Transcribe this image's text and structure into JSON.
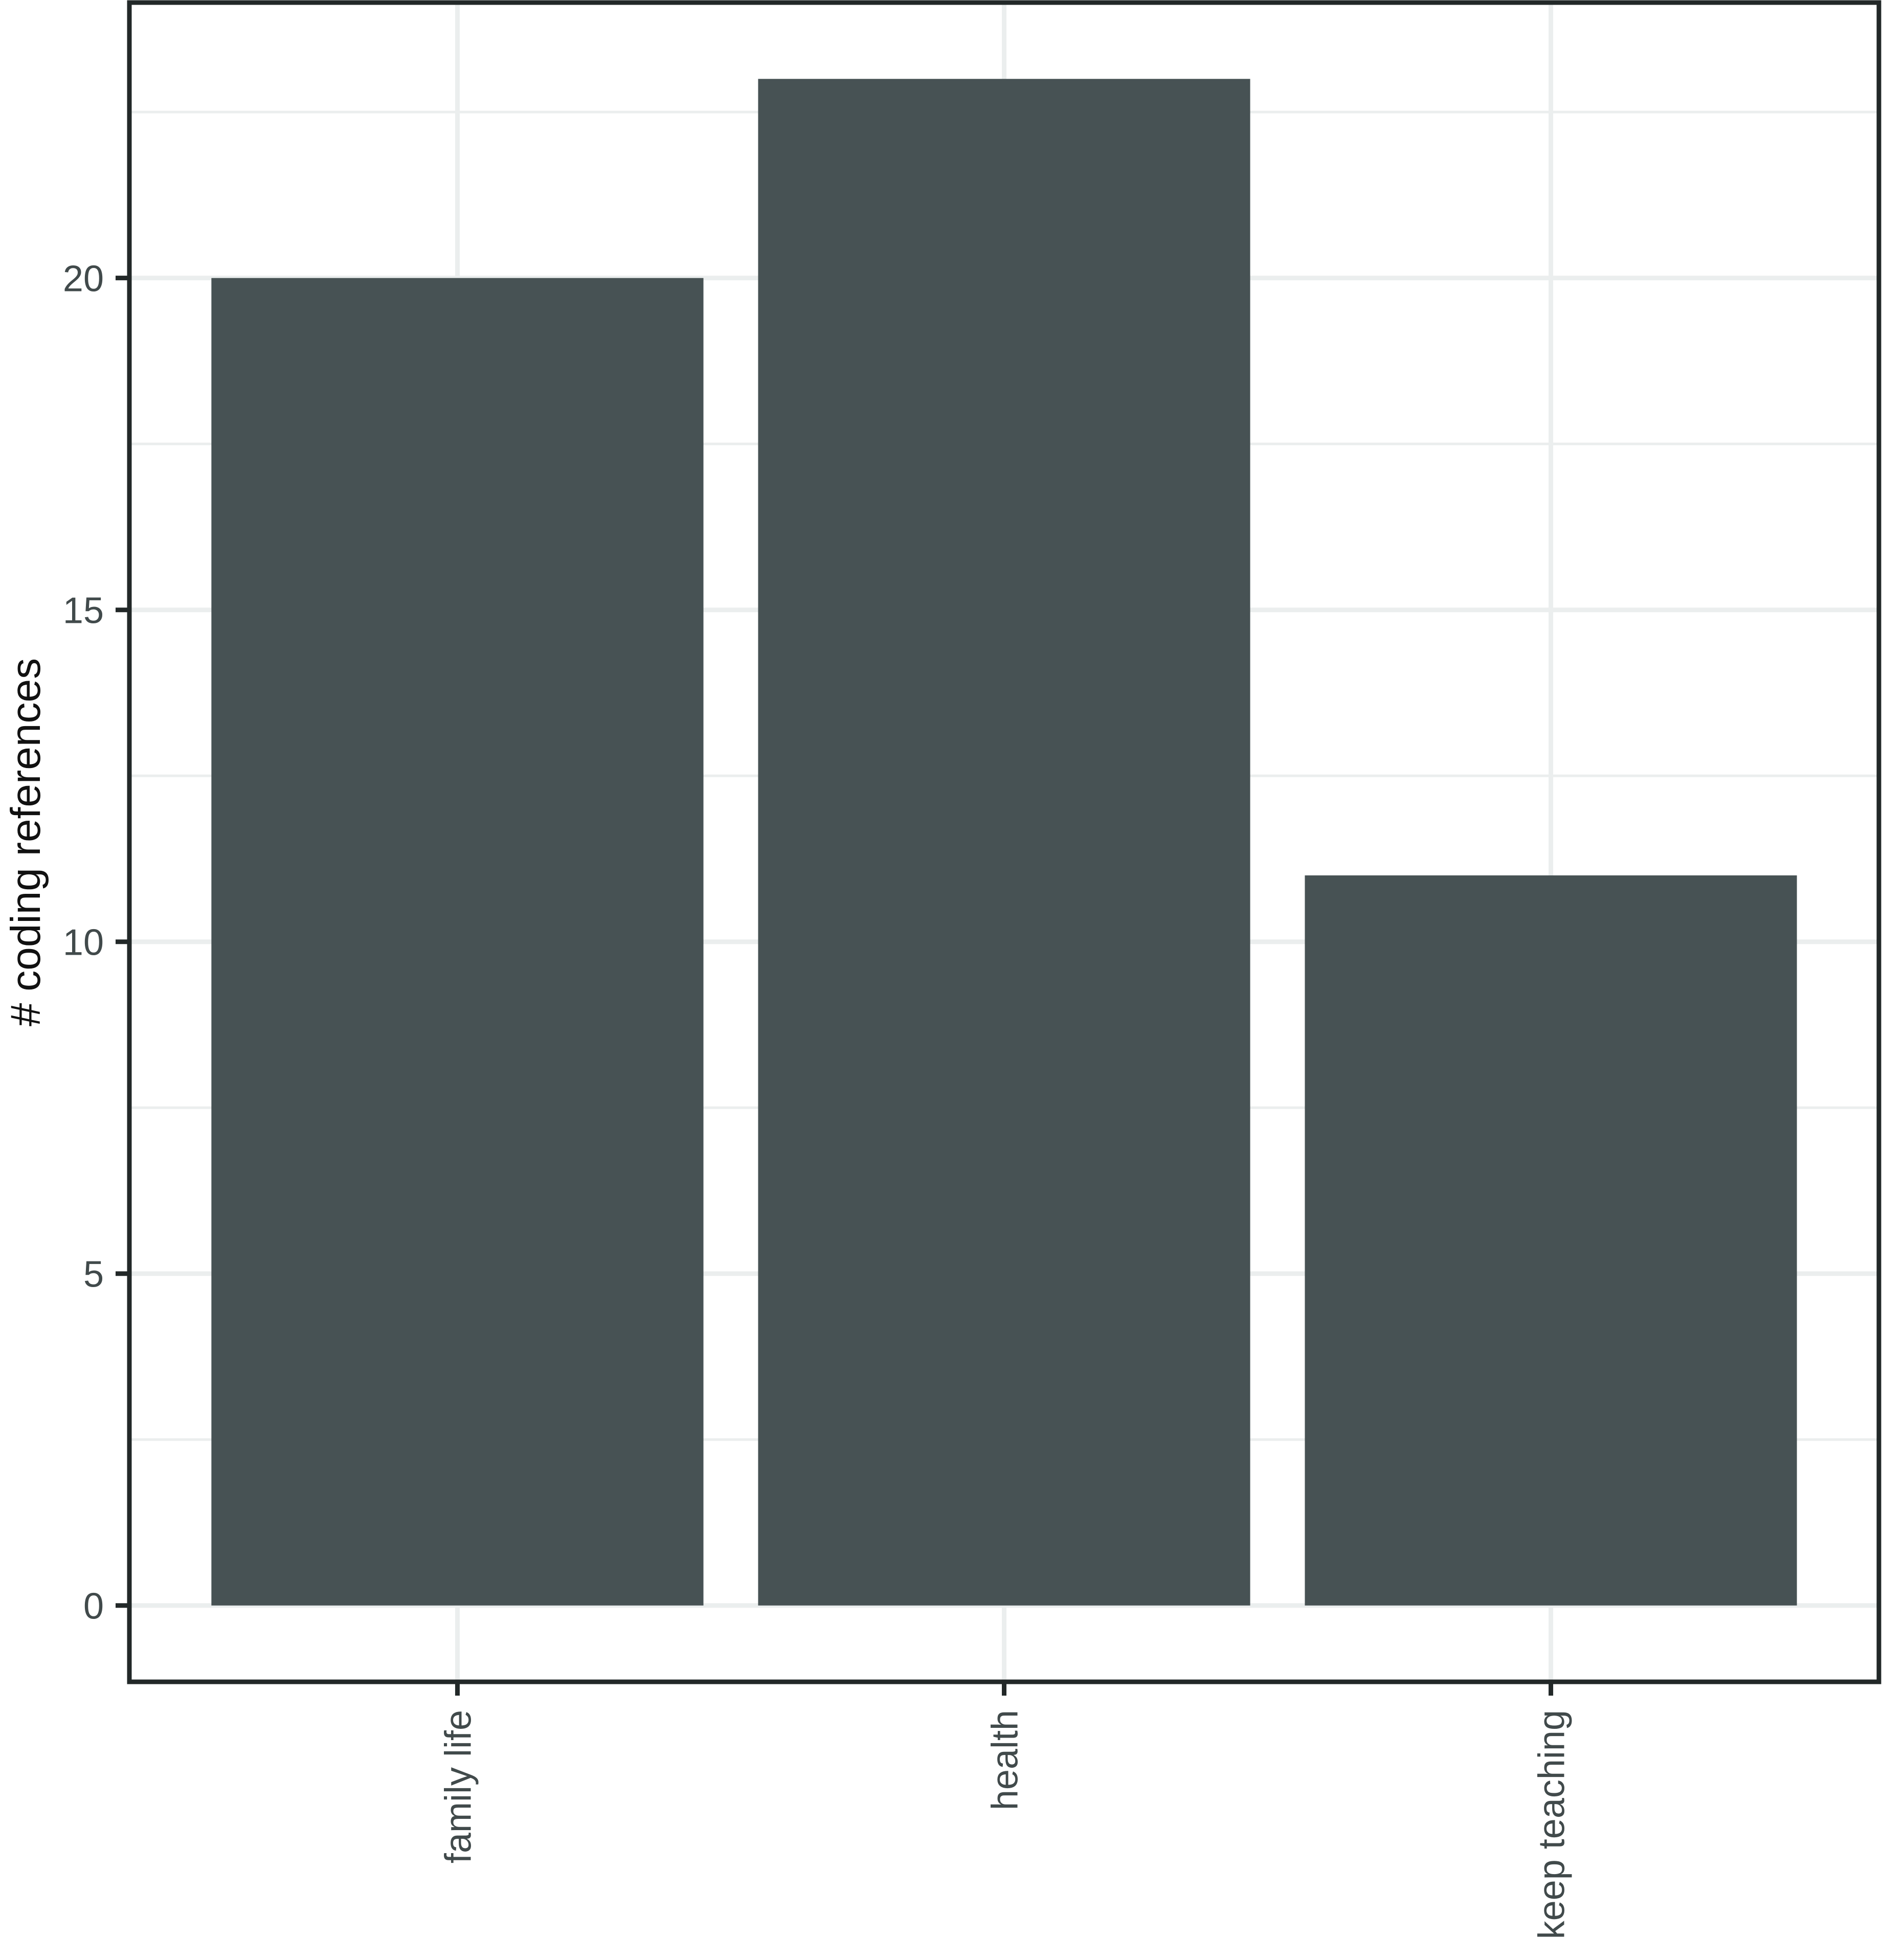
{
  "chart_data": {
    "type": "bar",
    "title": "",
    "xlabel": "",
    "ylabel": "# coding references",
    "categories": [
      "family life",
      "health",
      "keep teaching"
    ],
    "values": [
      20,
      23,
      11
    ],
    "yticks": [
      0,
      5,
      10,
      15,
      20
    ],
    "ylim": [
      -1.15,
      24.15
    ],
    "grid": true,
    "legend": null,
    "x_label_rotation": -90
  },
  "colors": {
    "bar": "#475254",
    "grid": "#ebeeee",
    "axis": "#222828",
    "tick_text": "#414a4b",
    "axis_title": "#111111",
    "background": "#ffffff"
  }
}
